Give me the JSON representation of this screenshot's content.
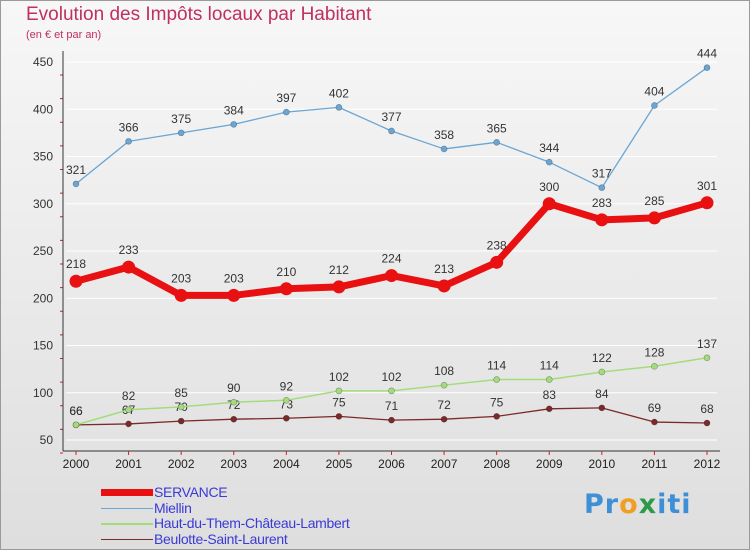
{
  "header": {
    "title": "Evolution des Impôts locaux par Habitant",
    "subtitle": "(en € et par an)"
  },
  "logo": {
    "text": "Proxiti",
    "letters": [
      "P",
      "r",
      "o",
      "x",
      "i",
      "t",
      "i"
    ],
    "colors": [
      "#3d8fd6",
      "#3d8fd6",
      "#f0a020",
      "#2d9a4a",
      "#3d8fd6",
      "#3d8fd6",
      "#3d8fd6"
    ]
  },
  "chart_data": {
    "type": "line",
    "title": "Evolution des Impôts locaux par Habitant",
    "subtitle": "(en € et par an)",
    "xlabel": "",
    "ylabel": "",
    "x": [
      2000,
      2001,
      2002,
      2003,
      2004,
      2005,
      2006,
      2007,
      2008,
      2009,
      2010,
      2011,
      2012
    ],
    "yticks": [
      50,
      100,
      150,
      200,
      250,
      300,
      350,
      400,
      450
    ],
    "ylim": [
      50,
      455
    ],
    "grid": "horizontal",
    "legend_position": "bottom-left",
    "series": [
      {
        "name": "SERVANCE",
        "color": "#e81010",
        "values": [
          218,
          233,
          203,
          203,
          210,
          212,
          224,
          213,
          238,
          300,
          283,
          285,
          301
        ]
      },
      {
        "name": "Miellin",
        "color": "#6aa6d4",
        "values": [
          321,
          366,
          375,
          384,
          397,
          402,
          377,
          358,
          365,
          344,
          317,
          404,
          444
        ]
      },
      {
        "name": "Haut-du-Them-Château-Lambert",
        "color": "#a4dc7c",
        "values": [
          66,
          82,
          85,
          90,
          92,
          102,
          102,
          108,
          114,
          114,
          122,
          128,
          137
        ]
      },
      {
        "name": "Beulotte-Saint-Laurent",
        "color": "#7a2a2a",
        "values": [
          66,
          67,
          70,
          72,
          73,
          75,
          71,
          72,
          75,
          83,
          84,
          69,
          68
        ]
      }
    ]
  }
}
